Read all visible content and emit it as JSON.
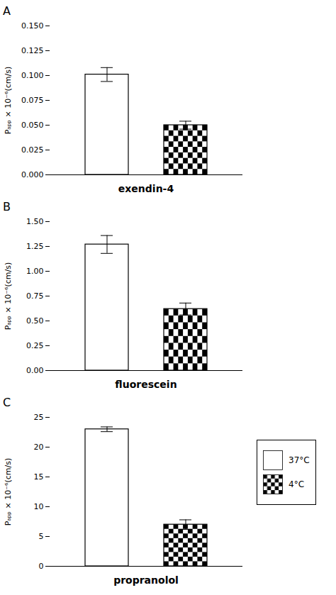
{
  "chart_data": [
    {
      "type": "bar",
      "title": "A",
      "xlabel": "exendin-4",
      "ylabel": "Pₐₚₚ × 10⁻⁶(cm/s)",
      "categories": [
        null
      ],
      "series": [
        {
          "name": "37°C",
          "color": "#ffffff",
          "values": [
            0.101
          ],
          "errors": [
            0.007
          ]
        },
        {
          "name": "4°C",
          "color": "#000000",
          "values": [
            0.05
          ],
          "errors": [
            0.004
          ]
        }
      ],
      "ylim": [
        0,
        0.15
      ],
      "yticks": [
        {
          "value": 0,
          "label": "0.000"
        },
        0.025,
        {
          "value": 0.05,
          "label": "0.050"
        },
        0.075,
        {
          "value": 0.1,
          "label": "0.100"
        },
        0.125,
        {
          "value": 0.15,
          "label": "0.150"
        }
      ],
      "grid": false,
      "tick_labels": "y"
    },
    {
      "type": "bar",
      "title": "B",
      "xlabel": "fluorescein",
      "ylabel": "Pₐₚₚ × 10⁻⁶(cm/s)",
      "categories": [
        null
      ],
      "series": [
        {
          "name": "37°C",
          "color": "#ffffff",
          "values": [
            1.27
          ],
          "errors": [
            0.09
          ]
        },
        {
          "name": "4°C",
          "color": "#000000",
          "values": [
            0.62
          ],
          "errors": [
            0.06
          ]
        }
      ],
      "ylim": [
        0,
        1.5
      ],
      "yticks": [
        {
          "value": 0,
          "label": "0.00"
        },
        0.25,
        {
          "value": 0.5,
          "label": "0.50"
        },
        0.75,
        {
          "value": 1,
          "label": "1.00"
        },
        1.25,
        {
          "value": 1.5,
          "label": "1.50"
        }
      ],
      "grid": false,
      "tick_labels": "y"
    },
    {
      "type": "bar",
      "title": "C",
      "xlabel": "propranolol",
      "ylabel": "Pₐₚₚ × 10⁻⁶(cm/s)",
      "categories": [
        null
      ],
      "series": [
        {
          "name": "37°C",
          "color": "#ffffff",
          "values": [
            23.0
          ],
          "errors": [
            0.4
          ]
        },
        {
          "name": "4°C",
          "color": "#000000",
          "values": [
            7.0
          ],
          "errors": [
            0.8
          ]
        }
      ],
      "ylim": [
        0,
        25
      ],
      "yticks": [
        0,
        5,
        10,
        15,
        20,
        25
      ],
      "grid": false,
      "tick_labels": "y",
      "legend": "right"
    }
  ]
}
